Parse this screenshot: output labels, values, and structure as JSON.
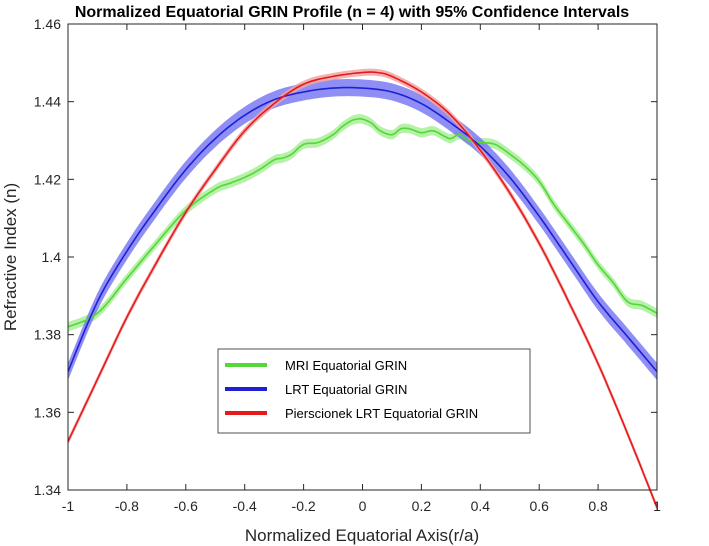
{
  "chart_data": {
    "type": "line",
    "title": "Normalized Equatorial GRIN Profile (n = 4) with 95% Confidence Intervals",
    "xlabel": "Normalized Equatorial Axis(r/a)",
    "ylabel": "Refractive Index (n)",
    "xlim": [
      -1,
      1
    ],
    "ylim": [
      1.34,
      1.46
    ],
    "xticks": [
      -1,
      -0.8,
      -0.6,
      -0.4,
      -0.2,
      0,
      0.2,
      0.4,
      0.6,
      0.8,
      1
    ],
    "xtick_labels": [
      "-1",
      "-0.8",
      "-0.6",
      "-0.4",
      "-0.2",
      "0",
      "0.2",
      "0.4",
      "0.6",
      "0.8",
      "1"
    ],
    "yticks": [
      1.34,
      1.36,
      1.38,
      1.4,
      1.42,
      1.44,
      1.46
    ],
    "ytick_labels": [
      "1.34",
      "1.36",
      "1.38",
      "1.4",
      "1.42",
      "1.44",
      "1.46"
    ],
    "grid": false,
    "legend_position": "lower-center",
    "series": [
      {
        "name": "MRI Equatorial GRIN",
        "color": "#55d63a",
        "band_color": "#a8ee96",
        "x": [
          -1,
          -0.9,
          -0.8,
          -0.7,
          -0.6,
          -0.5,
          -0.45,
          -0.4,
          -0.35,
          -0.3,
          -0.27,
          -0.24,
          -0.2,
          -0.15,
          -0.1,
          -0.07,
          -0.04,
          -0.02,
          0,
          0.03,
          0.06,
          0.1,
          0.13,
          0.16,
          0.2,
          0.24,
          0.28,
          0.3,
          0.33,
          0.36,
          0.4,
          0.45,
          0.5,
          0.55,
          0.6,
          0.65,
          0.7,
          0.75,
          0.8,
          0.85,
          0.9,
          0.95,
          1
        ],
        "values": [
          1.382,
          1.3855,
          1.3945,
          1.4035,
          1.412,
          1.4175,
          1.419,
          1.4205,
          1.4225,
          1.425,
          1.4255,
          1.4265,
          1.429,
          1.4295,
          1.4315,
          1.4335,
          1.435,
          1.4355,
          1.4355,
          1.4345,
          1.4325,
          1.4315,
          1.433,
          1.433,
          1.432,
          1.4325,
          1.431,
          1.4305,
          1.4315,
          1.43,
          1.4295,
          1.429,
          1.4265,
          1.4235,
          1.4195,
          1.4135,
          1.4085,
          1.4035,
          1.398,
          1.3935,
          1.3885,
          1.3875,
          1.3855
        ],
        "ci_halfwidth": 0.0012
      },
      {
        "name": "LRT Equatorial GRIN",
        "color": "#1f1fd6",
        "band_color": "#7a7af2",
        "x": [
          -1,
          -0.9,
          -0.8,
          -0.7,
          -0.6,
          -0.5,
          -0.4,
          -0.3,
          -0.2,
          -0.1,
          0,
          0.1,
          0.2,
          0.3,
          0.4,
          0.5,
          0.6,
          0.7,
          0.8,
          0.9,
          1
        ],
        "values": [
          1.3705,
          1.3885,
          1.4015,
          1.4125,
          1.4225,
          1.4305,
          1.4365,
          1.4405,
          1.4425,
          1.4435,
          1.4435,
          1.4425,
          1.4395,
          1.4345,
          1.4285,
          1.4205,
          1.4105,
          1.3995,
          1.3885,
          1.3795,
          1.3705
        ],
        "ci_halfwidth": 0.0022
      },
      {
        "name": "Pierscionek LRT Equatorial GRIN",
        "color": "#e61a1a",
        "band_color": "#f2a3a3",
        "x": [
          -1,
          -0.9,
          -0.8,
          -0.7,
          -0.6,
          -0.5,
          -0.4,
          -0.3,
          -0.2,
          -0.1,
          0,
          0.05,
          0.1,
          0.2,
          0.3,
          0.4,
          0.5,
          0.6,
          0.7,
          0.8,
          0.9,
          1
        ],
        "values": [
          1.3525,
          1.3685,
          1.3845,
          1.3985,
          1.4115,
          1.4225,
          1.4325,
          1.4395,
          1.4445,
          1.4465,
          1.4475,
          1.4475,
          1.4465,
          1.4425,
          1.4365,
          1.4275,
          1.4165,
          1.4035,
          1.3885,
          1.3725,
          1.3545,
          1.3355
        ],
        "ci_halfwidth": 0.0009
      }
    ]
  }
}
